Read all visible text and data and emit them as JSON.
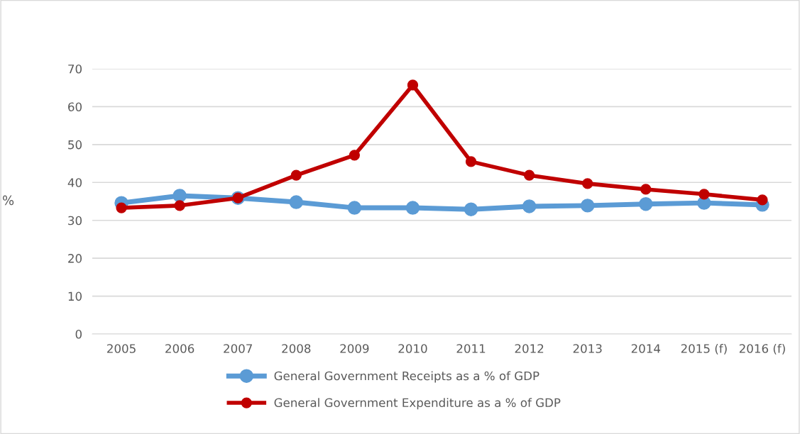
{
  "chart_data": {
    "type": "line",
    "ylabel": "%",
    "categories": [
      "2005",
      "2006",
      "2007",
      "2008",
      "2009",
      "2010",
      "2011",
      "2012",
      "2013",
      "2014",
      "2015 (f)",
      "2016 (f)"
    ],
    "series": [
      {
        "name": "General Government Receipts as a % of GDP",
        "color": "#5b9bd5",
        "values": [
          34.6,
          36.5,
          35.9,
          34.8,
          33.3,
          33.3,
          32.9,
          33.7,
          33.9,
          34.3,
          34.6,
          34.1
        ]
      },
      {
        "name": "General Government Expenditure as a % of GDP",
        "color": "#c00000",
        "values": [
          33.3,
          33.9,
          35.9,
          41.9,
          47.2,
          65.7,
          45.5,
          41.9,
          39.7,
          38.2,
          36.9,
          35.4
        ]
      }
    ],
    "ylim": [
      0,
      70
    ],
    "yticks": [
      0,
      10,
      20,
      30,
      40,
      50,
      60,
      70
    ],
    "grid": "y",
    "legend": "bottom",
    "marker": "circle",
    "line_style": "solid"
  }
}
